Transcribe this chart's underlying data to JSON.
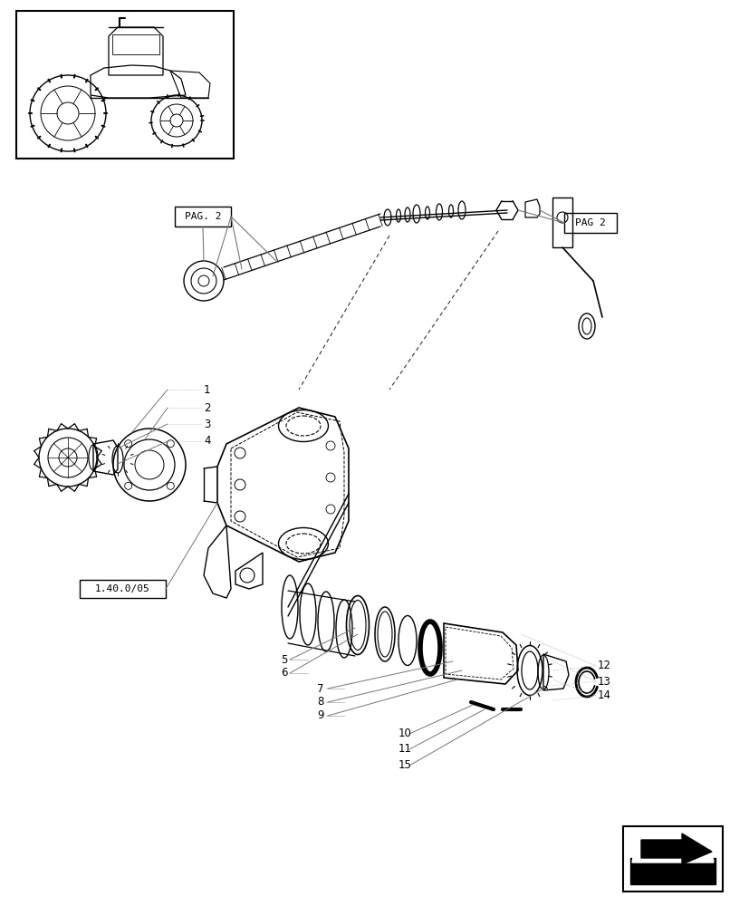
{
  "bg_color": "#ffffff",
  "line_color": "#000000",
  "gray_color": "#777777",
  "light_gray": "#aaaaaa",
  "fig_width": 8.28,
  "fig_height": 10.0,
  "dpi": 100,
  "pag2_left_label": "PAG. 2",
  "pag2_right_label": "PAG 2",
  "ref_label": "1.40.0/05"
}
